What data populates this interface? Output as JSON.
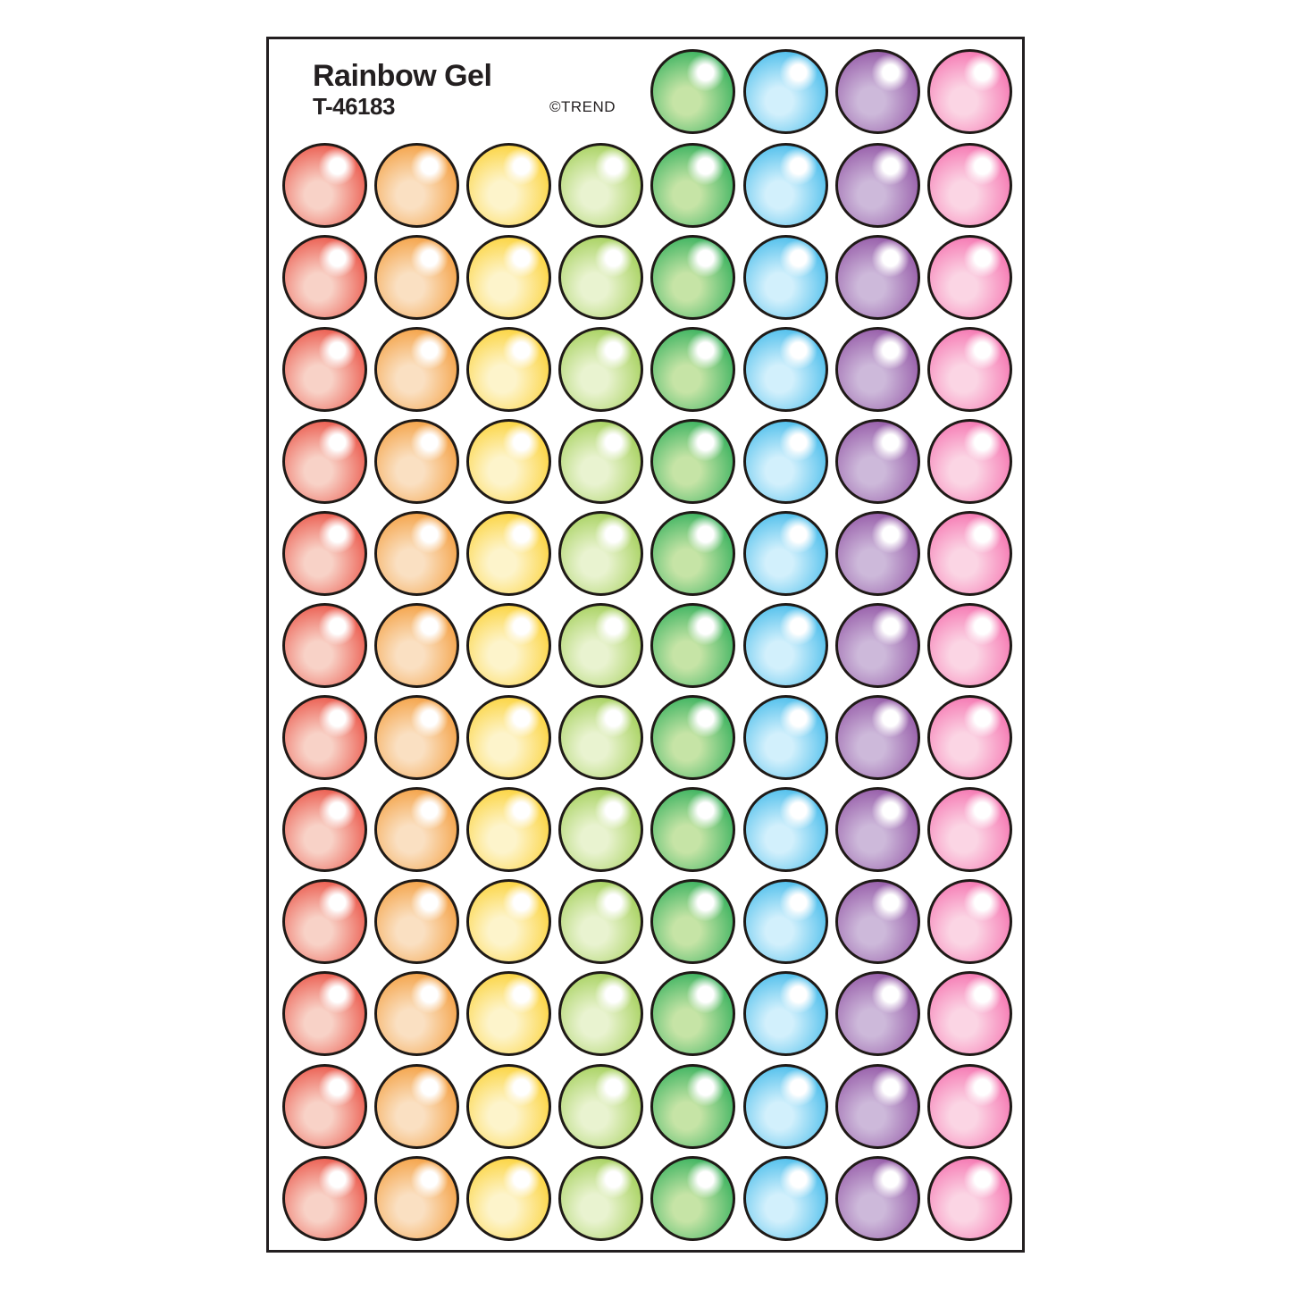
{
  "sheet": {
    "title": "Rainbow Gel",
    "code": "T-46183",
    "brand": "©TREND",
    "outline_color": "#1f1a17",
    "highlight_color": "#ffffff",
    "text_color": "#231f20",
    "colors": {
      "red": {
        "edge": "#e8392b",
        "light": "#f8d2c7"
      },
      "orange": {
        "edge": "#f39022",
        "light": "#fae0c2"
      },
      "yellow": {
        "edge": "#fcca15",
        "light": "#fdf4cb"
      },
      "yellow-green": {
        "edge": "#94c83e",
        "light": "#e9f3d0"
      },
      "green": {
        "edge": "#14a54b",
        "light": "#c6e4a6"
      },
      "blue": {
        "edge": "#27b0e7",
        "light": "#d2f0fc"
      },
      "purple": {
        "edge": "#86409a",
        "light": "#cdb9da"
      },
      "pink": {
        "edge": "#f45ba3",
        "light": "#fbd5e4"
      }
    },
    "grid": {
      "full_row_colors": [
        "red",
        "orange",
        "yellow",
        "yellow-green",
        "green",
        "blue",
        "purple",
        "pink"
      ],
      "partial_row_colors": [
        "green",
        "blue",
        "purple",
        "pink"
      ],
      "full_row_count": 12,
      "columns": 8,
      "total_stickers": 100
    }
  }
}
